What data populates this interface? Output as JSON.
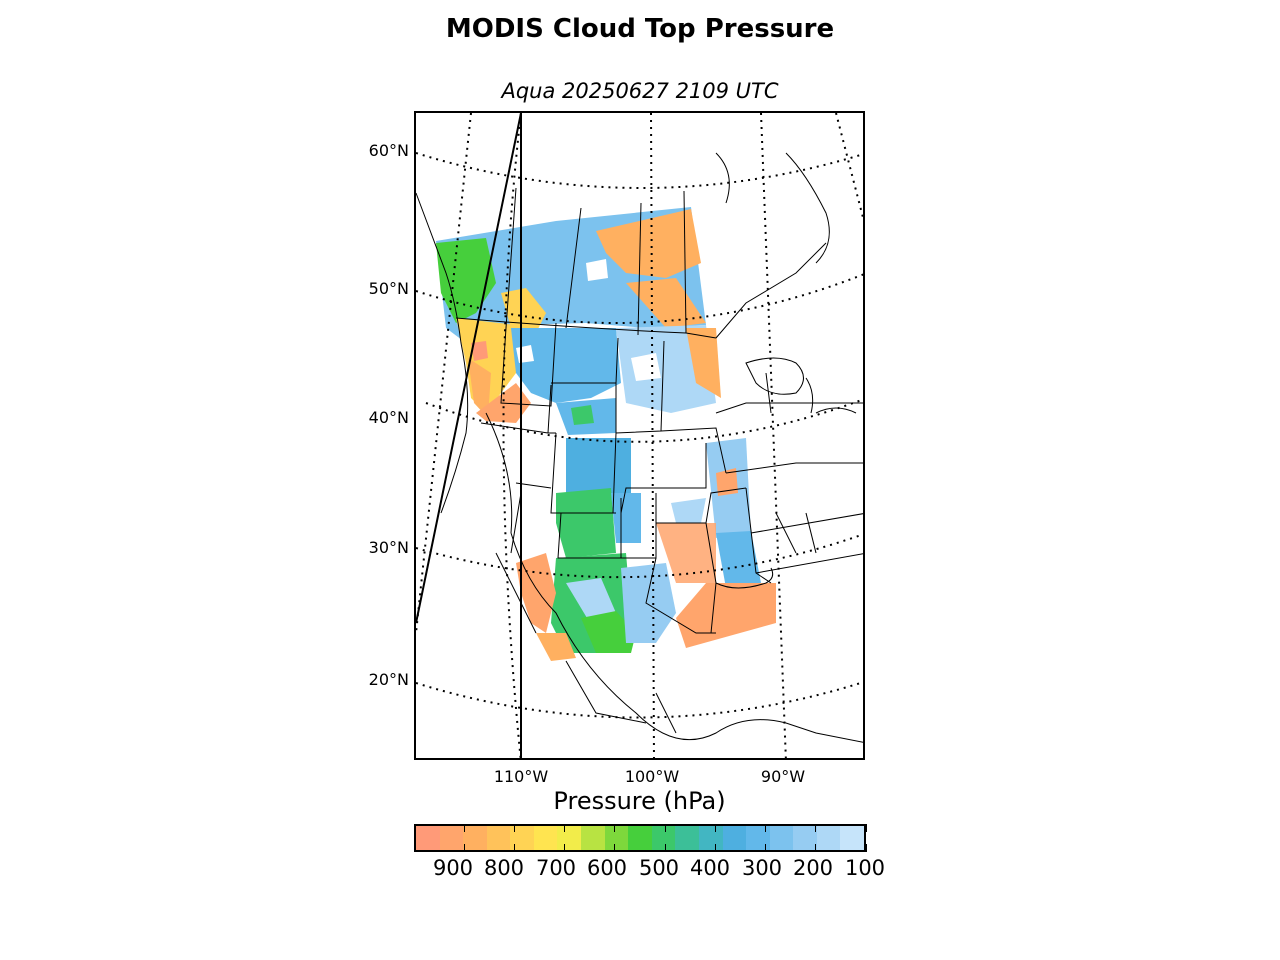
{
  "title": "MODIS Cloud Top Pressure",
  "subtitle": "Aqua 20250627 2109 UTC",
  "map": {
    "projection": "conic",
    "lat_labels": [
      "60°N",
      "50°N",
      "40°N",
      "30°N",
      "20°N"
    ],
    "lon_labels": [
      "110°W",
      "100°W",
      "90°W"
    ],
    "graticule_style": "dotted",
    "region": "North America — western/central United States swath"
  },
  "colorbar": {
    "label": "Pressure (hPa)",
    "ticks": [
      "900",
      "800",
      "700",
      "600",
      "500",
      "400",
      "300",
      "200",
      "100"
    ],
    "range": [
      1000,
      100
    ],
    "colors": [
      "#ff9a78",
      "#ffa56c",
      "#ffb060",
      "#ffc25a",
      "#ffd354",
      "#ffe450",
      "#f2ec4a",
      "#b8e342",
      "#7ed83c",
      "#46cf3c",
      "#3cc86a",
      "#3cbf98",
      "#42b6c2",
      "#4eafe0",
      "#62b8ea",
      "#7cc2ee",
      "#96ccf2",
      "#aed8f6",
      "#c6e4fa"
    ]
  }
}
